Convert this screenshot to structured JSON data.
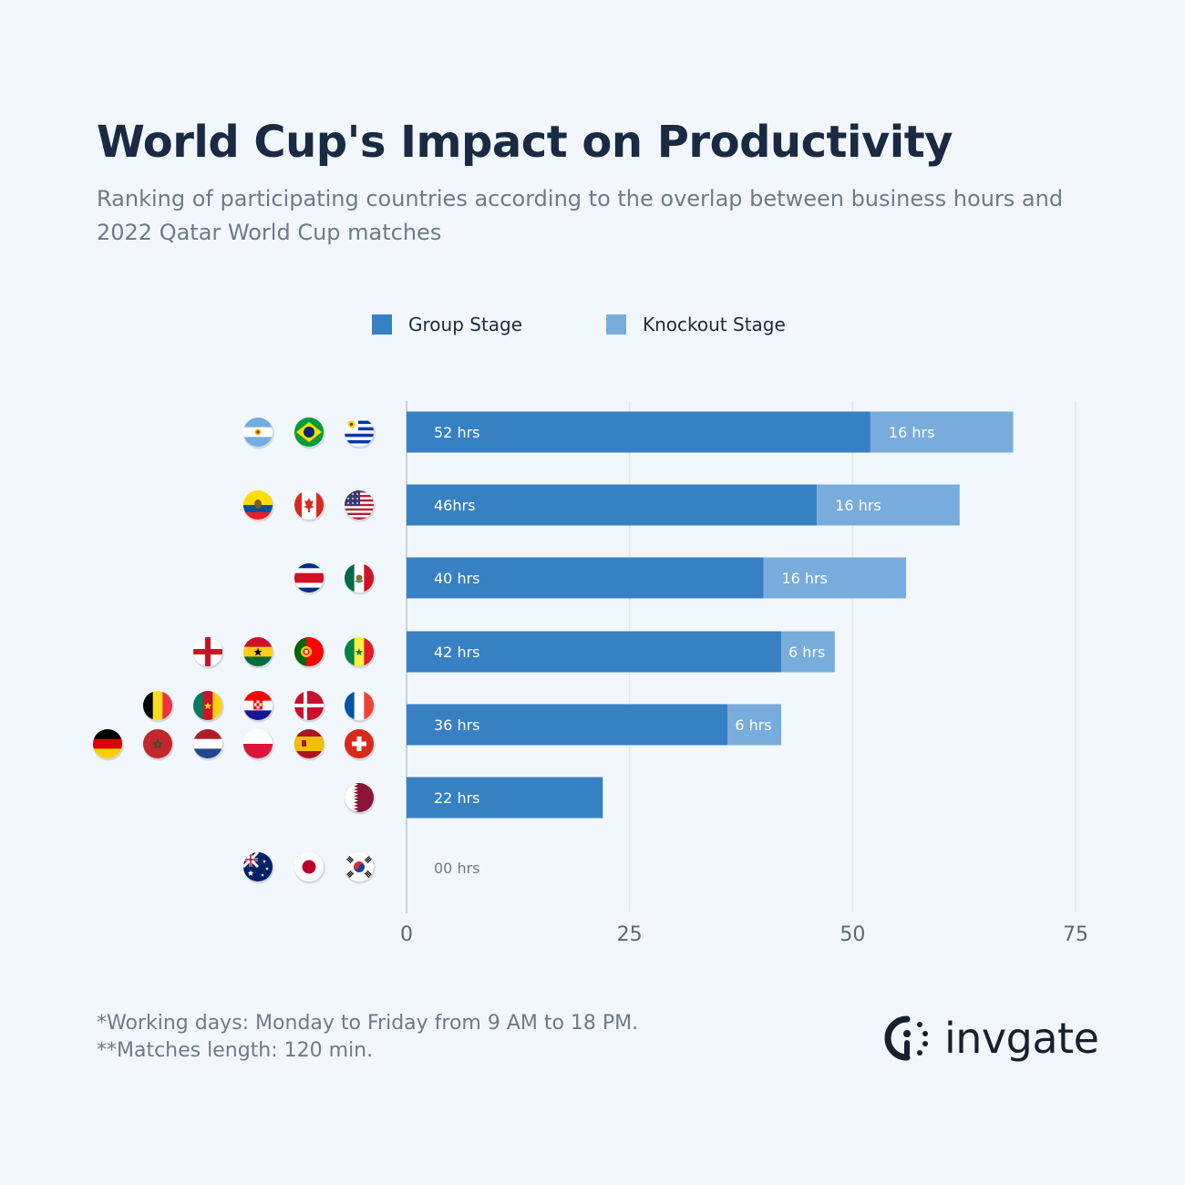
{
  "title": "World Cup's Impact on Productivity",
  "subtitle": "Ranking of participating countries according to the overlap between business hours and 2022 Qatar World Cup matches",
  "colors": {
    "group": "#3880c4",
    "knockout": "#78acdc",
    "grid": "#dfe7ef",
    "background": "#f1f7fd"
  },
  "legend": [
    {
      "label": "Group Stage",
      "color": "#3880c4"
    },
    {
      "label": "Knockout Stage",
      "color": "#78acdc"
    }
  ],
  "chart_data": {
    "type": "bar",
    "orientation": "horizontal",
    "stacked": true,
    "categories": [
      "Argentina, Brazil, Uruguay",
      "Ecuador, Canada, USA",
      "Costa Rica, Mexico",
      "England, Ghana, Portugal, Senegal",
      "Belgium, Cameroon, Croatia, Denmark, France, Germany, Morocco, Netherlands, Poland, Spain, Switzerland",
      "Qatar",
      "Australia, Japan, South Korea"
    ],
    "series": [
      {
        "name": "Group Stage",
        "values": [
          52,
          46,
          40,
          42,
          36,
          22,
          0
        ]
      },
      {
        "name": "Knockout Stage",
        "values": [
          16,
          16,
          16,
          6,
          6,
          0,
          0
        ]
      }
    ],
    "data_labels": [
      [
        "52 hrs",
        "16 hrs"
      ],
      [
        "46hrs",
        "16 hrs"
      ],
      [
        "40 hrs",
        "16 hrs"
      ],
      [
        "42 hrs",
        "6 hrs"
      ],
      [
        "36 hrs",
        "6 hrs"
      ],
      [
        "22 hrs",
        ""
      ],
      [
        "00 hrs",
        ""
      ]
    ],
    "xlim": [
      0,
      75
    ],
    "xticks": [
      "0",
      "25",
      "50",
      "75"
    ],
    "grid": true,
    "legend_position": "top"
  },
  "row_flags": [
    [
      "argentina",
      "brazil",
      "uruguay"
    ],
    [
      "ecuador",
      "canada",
      "usa"
    ],
    [
      "costa-rica",
      "mexico"
    ],
    [
      "england",
      "ghana",
      "portugal",
      "senegal"
    ],
    [
      "belgium",
      "cameroon",
      "croatia",
      "denmark",
      "france",
      "germany",
      "morocco",
      "netherlands",
      "poland",
      "spain",
      "switzerland"
    ],
    [
      "qatar"
    ],
    [
      "australia",
      "japan",
      "south-korea"
    ]
  ],
  "footnotes": [
    "*Working days: Monday to Friday from 9 AM to 18 PM.",
    "**Matches length: 120 min."
  ],
  "logo": {
    "text": "invgate"
  }
}
